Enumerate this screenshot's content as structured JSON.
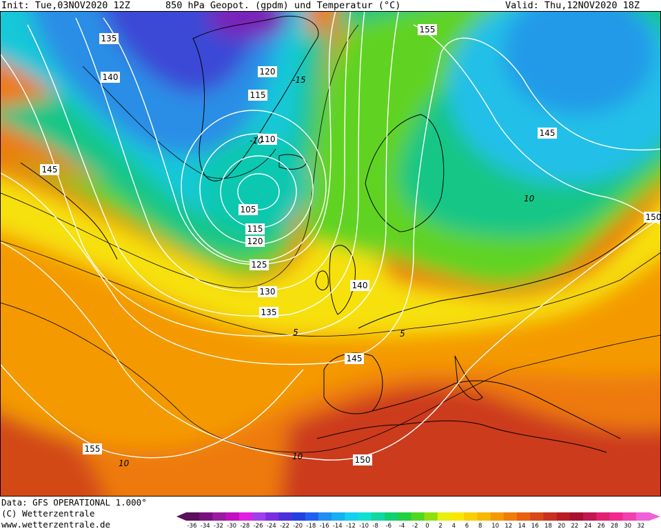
{
  "header": {
    "init": "Init: Tue,03NOV2020 12Z",
    "title": "850 hPa Geopot. (gpdm) und Temperatur (°C)",
    "valid": "Valid: Thu,12NOV2020 18Z"
  },
  "footer": {
    "data_line": "Data: GFS OPERATIONAL 1.000°",
    "copyright": "(C) Wetterzentrale",
    "url": "www.wetterzentrale.de"
  },
  "colors": {
    "deep_cold": "#5a1a8a",
    "very_cold": "#3a40c8",
    "cold": "#1c9ae6",
    "cool": "#19d3d0",
    "mild_cold": "#18c070",
    "near_zero": "#7ae012",
    "warm_low": "#f2f20c",
    "warm": "#f5b800",
    "hot": "#ee6f0c",
    "very_hot": "#c8321c",
    "contour_line": "#ffffff",
    "coast_line": "#000000"
  },
  "geopotential_labels": [
    {
      "id": "z135-nw",
      "text": "135"
    },
    {
      "id": "z140-nw",
      "text": "140"
    },
    {
      "id": "z145-w",
      "text": "145"
    },
    {
      "id": "z120-n",
      "text": "120"
    },
    {
      "id": "z115-n",
      "text": "115"
    },
    {
      "id": "z110",
      "text": "110"
    },
    {
      "id": "z105",
      "text": "105"
    },
    {
      "id": "z115-s",
      "text": "115"
    },
    {
      "id": "z120-s",
      "text": "120"
    },
    {
      "id": "z125",
      "text": "125"
    },
    {
      "id": "z130",
      "text": "130"
    },
    {
      "id": "z135-s",
      "text": "135"
    },
    {
      "id": "z140-c",
      "text": "140"
    },
    {
      "id": "z145-c",
      "text": "145"
    },
    {
      "id": "z155-ne",
      "text": "155"
    },
    {
      "id": "z145-e",
      "text": "145"
    },
    {
      "id": "z150-e",
      "text": "150"
    },
    {
      "id": "z155-sw",
      "text": "155"
    },
    {
      "id": "z150-s",
      "text": "150"
    }
  ],
  "temperature_labels": [
    {
      "id": "t-15",
      "text": "-15"
    },
    {
      "id": "t-10",
      "text": "-10"
    },
    {
      "id": "t10-e",
      "text": "10"
    },
    {
      "id": "t5-c",
      "text": "5"
    },
    {
      "id": "t5-s",
      "text": "5"
    },
    {
      "id": "t10-sw",
      "text": "10"
    },
    {
      "id": "t10-s",
      "text": "10"
    }
  ],
  "colorbar": {
    "labels": [
      "-36",
      "-34",
      "-32",
      "-30",
      "-28",
      "-26",
      "-24",
      "-22",
      "-20",
      "-18",
      "-16",
      "-14",
      "-12",
      "-10",
      "-8",
      "-6",
      "-4",
      "-2",
      "0",
      "2",
      "4",
      "6",
      "8",
      "10",
      "12",
      "14",
      "16",
      "18",
      "20",
      "22",
      "24",
      "26",
      "28",
      "30",
      "32"
    ],
    "colors": [
      "#5c0f5c",
      "#7a1080",
      "#9a1aa0",
      "#c010c0",
      "#e020e0",
      "#a040e8",
      "#7a2ee0",
      "#4a30d8",
      "#2040e0",
      "#2060f0",
      "#2090f0",
      "#14b0f0",
      "#14d0f0",
      "#10e0d0",
      "#10d8a0",
      "#10d070",
      "#20d040",
      "#50d820",
      "#90e010",
      "#e8f010",
      "#f8e800",
      "#f8d000",
      "#f8b800",
      "#f49a00",
      "#ee7e08",
      "#e86010",
      "#d84818",
      "#c83020",
      "#b81c24",
      "#a81030",
      "#c01850",
      "#e02070",
      "#f02890",
      "#f040b0",
      "#f060d8"
    ]
  }
}
